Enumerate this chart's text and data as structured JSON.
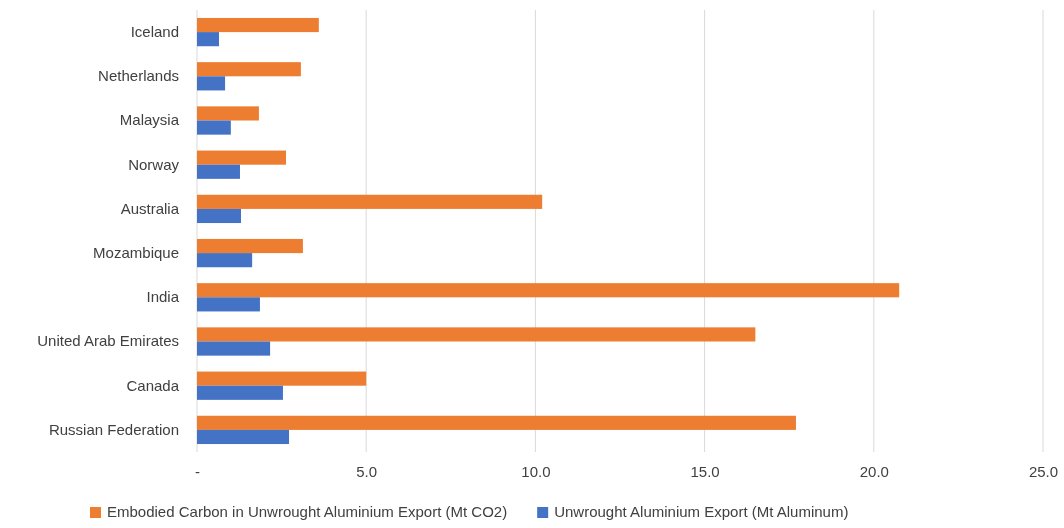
{
  "chart_data": {
    "type": "bar",
    "orientation": "horizontal",
    "categories": [
      "Iceland",
      "Netherlands",
      "Malaysia",
      "Norway",
      "Australia",
      "Mozambique",
      "India",
      "United Arab Emirates",
      "Canada",
      "Russian Federation"
    ],
    "series": [
      {
        "name": "Embodied Carbon in Unwrought Aluminium Export (Mt CO2)",
        "color": "#ed7d31",
        "values": [
          3.6,
          3.07,
          1.83,
          2.63,
          10.2,
          3.13,
          20.75,
          16.5,
          5.0,
          17.7
        ]
      },
      {
        "name": "Unwrought Aluminium Export (Mt Aluminum)",
        "color": "#4472c4",
        "values": [
          0.65,
          0.83,
          1.0,
          1.27,
          1.3,
          1.63,
          1.86,
          2.16,
          2.54,
          2.72
        ]
      }
    ],
    "xlim": [
      0,
      25
    ],
    "xticks": [
      {
        "value": 0,
        "label": "-"
      },
      {
        "value": 5,
        "label": "5.0"
      },
      {
        "value": 10,
        "label": "10.0"
      },
      {
        "value": 15,
        "label": "15.0"
      },
      {
        "value": 20,
        "label": "20.0"
      },
      {
        "value": 25,
        "label": "25.0"
      }
    ],
    "grid": "x",
    "legend": "bottom"
  }
}
